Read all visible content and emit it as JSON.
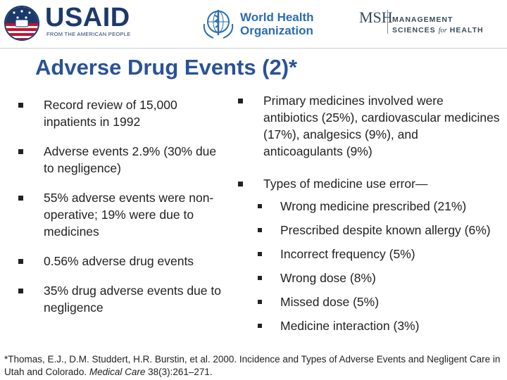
{
  "logos": {
    "usaid": {
      "wordmark": "USAID",
      "tagline": "FROM THE AMERICAN PEOPLE"
    },
    "who": {
      "line1": "World Health",
      "line2": "Organization"
    },
    "msh": {
      "mark": "MSH",
      "line1": "MANAGEMENT",
      "line2_a": "SCIENCES",
      "line2_b": "for",
      "line2_c": "HEALTH"
    }
  },
  "title": "Adverse Drug Events (2)*",
  "left_bullets": [
    "Record review of 15,000 inpatients in 1992",
    "Adverse events 2.9% (30% due to negligence)",
    "55% adverse events were non-operative; 19% were due to medicines",
    "0.56% adverse drug events",
    "35% drug adverse events due to negligence"
  ],
  "right_bullets": [
    "Primary medicines involved were antibiotics (25%), cardiovascular medicines (17%), analgesics (9%), and anticoagulants (9%)",
    "Types of medicine use error—"
  ],
  "error_types": [
    "Wrong medicine prescribed (21%)",
    "Prescribed despite known allergy (6%)",
    "Incorrect frequency (5%)",
    "Wrong dose (8%)",
    "Missed dose (5%)",
    "Medicine interaction (3%)"
  ],
  "footnote": {
    "marker": "*",
    "before": "Thomas, E.J., D.M. Studdert, H.R. Burstin, et al. 2000. Incidence and Types of Adverse Events and Negligent Care in Utah and Colorado. ",
    "journal": "Medical Care",
    "after": " 38(3):261–271."
  },
  "colors": {
    "title": "#2a5296",
    "usaid_blue": "#1b3a6b",
    "who_blue": "#2a6db0",
    "text": "#222222"
  }
}
